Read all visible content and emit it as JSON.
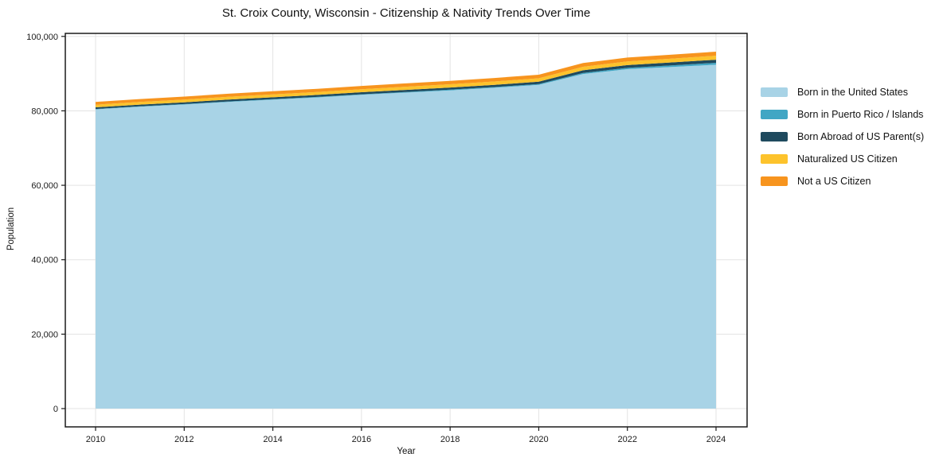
{
  "title": "St. Croix County, Wisconsin - Citizenship & Nativity Trends Over Time",
  "chart_data": {
    "type": "area",
    "stacked": true,
    "title": "St. Croix County, Wisconsin - Citizenship & Nativity Trends Over Time",
    "xlabel": "Year",
    "ylabel": "Population",
    "x": [
      2010,
      2011,
      2012,
      2013,
      2014,
      2015,
      2016,
      2017,
      2018,
      2019,
      2020,
      2021,
      2022,
      2023,
      2024
    ],
    "x_ticks": [
      2010,
      2012,
      2014,
      2016,
      2018,
      2020,
      2022,
      2024
    ],
    "x_tick_labels": [
      "2010",
      "2012",
      "2014",
      "2016",
      "2018",
      "2020",
      "2022",
      "2024"
    ],
    "y_ticks": [
      0,
      20000,
      40000,
      60000,
      80000,
      100000
    ],
    "y_tick_labels": [
      "0",
      "20,000",
      "40,000",
      "60,000",
      "80,000",
      "100,000"
    ],
    "ylim": [
      0,
      100000
    ],
    "grid": true,
    "grid_color": "#e3e3e3",
    "legend_position": "outside-right",
    "series": [
      {
        "name": "Born in the United States",
        "color": "#a8d3e6",
        "values": [
          80400,
          81100,
          81700,
          82400,
          83000,
          83600,
          84300,
          84900,
          85500,
          86200,
          87000,
          89900,
          91200,
          91800,
          92400
        ]
      },
      {
        "name": "Born in Puerto Rico / Islands",
        "color": "#41a6c4",
        "values": [
          100,
          110,
          120,
          130,
          140,
          150,
          160,
          170,
          180,
          190,
          200,
          300,
          350,
          420,
          500
        ]
      },
      {
        "name": "Born Abroad of US Parent(s)",
        "color": "#1f4a5e",
        "values": [
          450,
          460,
          470,
          490,
          500,
          520,
          540,
          560,
          580,
          600,
          620,
          700,
          750,
          800,
          850
        ]
      },
      {
        "name": "Naturalized US Citizen",
        "color": "#fdc32c",
        "values": [
          700,
          720,
          740,
          760,
          780,
          800,
          820,
          850,
          880,
          900,
          930,
          950,
          980,
          1020,
          1050
        ]
      },
      {
        "name": "Not a US Citizen",
        "color": "#f7941e",
        "values": [
          750,
          780,
          800,
          820,
          840,
          860,
          880,
          900,
          920,
          940,
          960,
          1000,
          1030,
          1060,
          1100
        ]
      }
    ]
  }
}
